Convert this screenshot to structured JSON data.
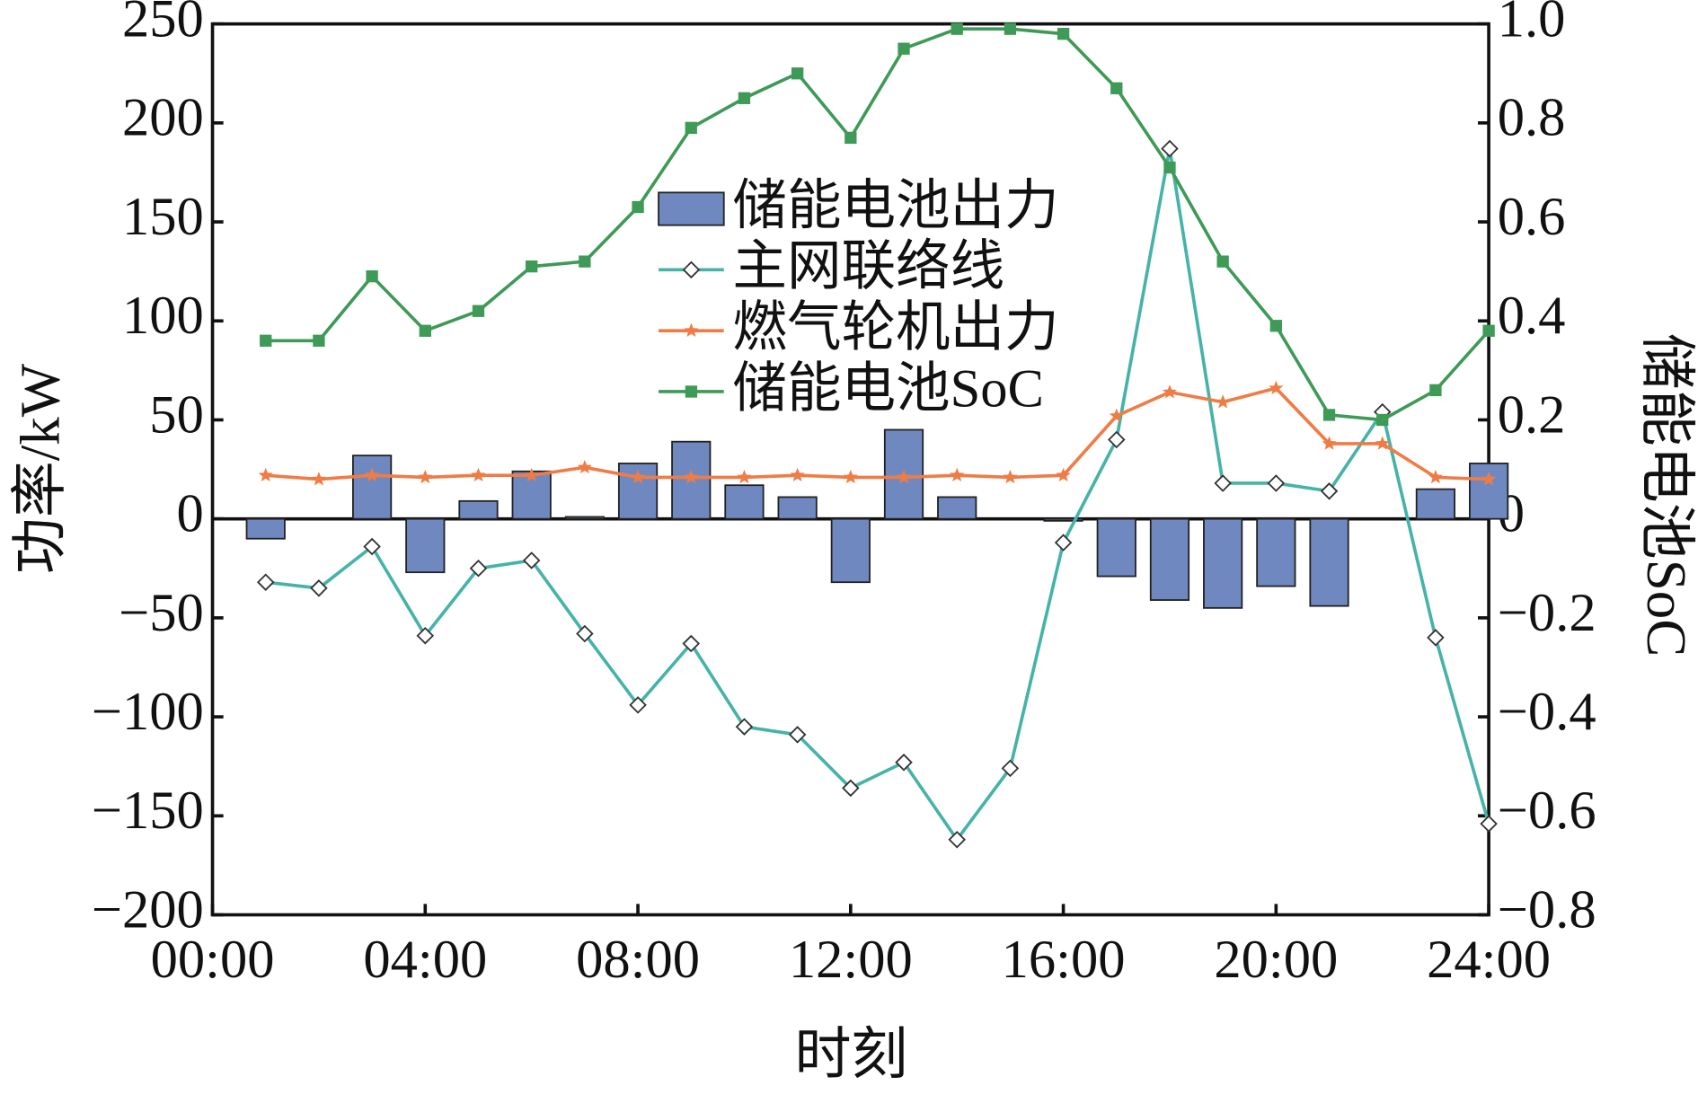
{
  "chart_data": {
    "type": "combo",
    "x_label": "时刻",
    "y_label": "功率/kW",
    "y2_label": "储能电池SoC",
    "x": [
      1,
      2,
      3,
      4,
      5,
      6,
      7,
      8,
      9,
      10,
      11,
      12,
      13,
      14,
      15,
      16,
      17,
      18,
      19,
      20,
      21,
      22,
      23,
      24
    ],
    "xlim": [
      0,
      24
    ],
    "xticks": [
      {
        "value": 0,
        "label": "00:00"
      },
      {
        "value": 4,
        "label": "04:00"
      },
      {
        "value": 8,
        "label": "08:00"
      },
      {
        "value": 12,
        "label": "12:00"
      },
      {
        "value": 16,
        "label": "16:00"
      },
      {
        "value": 20,
        "label": "20:00"
      },
      {
        "value": 24,
        "label": "24:00"
      }
    ],
    "ylim": [
      -200,
      250
    ],
    "yticks": [
      {
        "value": -200,
        "label": "−200"
      },
      {
        "value": -150,
        "label": "−150"
      },
      {
        "value": -100,
        "label": "−100"
      },
      {
        "value": -50,
        "label": "−50"
      },
      0,
      50,
      100,
      150,
      200,
      250
    ],
    "y2lim": [
      -0.8,
      1.0
    ],
    "y2ticks": [
      {
        "value": -0.8,
        "label": "−0.8"
      },
      {
        "value": -0.6,
        "label": "−0.6"
      },
      {
        "value": -0.4,
        "label": "−0.4"
      },
      {
        "value": -0.2,
        "label": "−0.2"
      },
      0,
      0.2,
      0.4,
      0.6,
      0.8,
      {
        "value": 1.0,
        "label": "1.0"
      }
    ],
    "series": [
      {
        "name": "储能电池出力",
        "type": "bar",
        "color": "#6f89c0",
        "values": [
          -10,
          0,
          32,
          -27,
          9,
          24,
          1,
          28,
          39,
          17,
          11,
          -32,
          45,
          11,
          0,
          -1,
          -29,
          -41,
          -45,
          -34,
          -44,
          0,
          15,
          28
        ]
      },
      {
        "name": "主网联络线",
        "type": "diamond-line",
        "color": "#45b3a8",
        "values": [
          -32,
          -35,
          -14,
          -59,
          -25,
          -21,
          -58,
          -94,
          -63,
          -105,
          -109,
          -136,
          -123,
          -162,
          -126,
          -12,
          40,
          187,
          18,
          18,
          14,
          54,
          -60,
          -154
        ]
      },
      {
        "name": "燃气轮机出力",
        "type": "star-line",
        "color": "#f07c45",
        "values": [
          22,
          20,
          22,
          21,
          22,
          22,
          26,
          21,
          21,
          21,
          22,
          21,
          21,
          22,
          21,
          22,
          52,
          64,
          59,
          66,
          38,
          38,
          21,
          20
        ]
      },
      {
        "name": "储能电池SoC",
        "type": "square-line",
        "color": "#3e9a56",
        "axis": "y2",
        "values": [
          0.36,
          0.36,
          0.49,
          0.38,
          0.42,
          0.51,
          0.52,
          0.63,
          0.79,
          0.85,
          0.9,
          0.77,
          0.95,
          0.99,
          0.99,
          0.98,
          0.87,
          0.71,
          0.52,
          0.39,
          0.21,
          0.2,
          0.26,
          0.38
        ]
      }
    ]
  }
}
